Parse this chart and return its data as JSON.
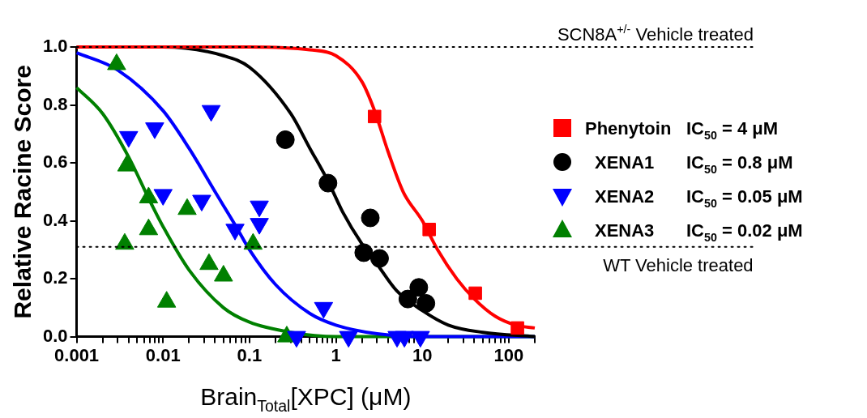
{
  "chart_data": {
    "type": "scatter",
    "xlabel": "Brain$_{Total}$[XPC] (μM)",
    "ylabel": "Relative Racine Score",
    "log": "x",
    "legend": "right",
    "grid": false,
    "xlim": [
      0.001,
      200
    ],
    "xticks": [
      {
        "value": 0.001,
        "label": "0.001"
      },
      {
        "value": 0.002,
        "label": null
      },
      {
        "value": 0.003,
        "label": null
      },
      {
        "value": 0.004,
        "label": null
      },
      {
        "value": 0.005,
        "label": null
      },
      {
        "value": 0.006,
        "label": null
      },
      {
        "value": 0.007,
        "label": null
      },
      {
        "value": 0.008,
        "label": null
      },
      {
        "value": 0.009,
        "label": null
      },
      {
        "value": 0.01,
        "label": "0.01"
      },
      {
        "value": 0.02,
        "label": null
      },
      {
        "value": 0.03,
        "label": null
      },
      {
        "value": 0.04,
        "label": null
      },
      {
        "value": 0.05,
        "label": null
      },
      {
        "value": 0.06,
        "label": null
      },
      {
        "value": 0.07,
        "label": null
      },
      {
        "value": 0.08,
        "label": null
      },
      {
        "value": 0.09,
        "label": null
      },
      {
        "value": 0.1,
        "label": "0.1"
      },
      {
        "value": 0.2,
        "label": null
      },
      {
        "value": 0.3,
        "label": null
      },
      {
        "value": 0.4,
        "label": null
      },
      {
        "value": 0.5,
        "label": null
      },
      {
        "value": 0.6,
        "label": null
      },
      {
        "value": 0.7,
        "label": null
      },
      {
        "value": 0.8,
        "label": null
      },
      {
        "value": 0.9,
        "label": null
      },
      1,
      {
        "value": 2,
        "label": null
      },
      {
        "value": 3,
        "label": null
      },
      {
        "value": 4,
        "label": null
      },
      {
        "value": 5,
        "label": null
      },
      {
        "value": 6,
        "label": null
      },
      {
        "value": 7,
        "label": null
      },
      {
        "value": 8,
        "label": null
      },
      {
        "value": 9,
        "label": null
      },
      10,
      {
        "value": 20,
        "label": null
      },
      {
        "value": 30,
        "label": null
      },
      {
        "value": 40,
        "label": null
      },
      {
        "value": 50,
        "label": null
      },
      {
        "value": 60,
        "label": null
      },
      {
        "value": 70,
        "label": null
      },
      {
        "value": 80,
        "label": null
      },
      {
        "value": 90,
        "label": null
      },
      100,
      {
        "value": 200,
        "label": null
      }
    ],
    "ylim": [
      0,
      1
    ],
    "yticks": [
      {
        "value": 0,
        "label": "0.0"
      },
      {
        "value": 0.2,
        "label": "0.2"
      },
      {
        "value": 0.4,
        "label": "0.4"
      },
      {
        "value": 0.6,
        "label": "0.6"
      },
      {
        "value": 0.8,
        "label": "0.8"
      },
      {
        "value": 1,
        "label": "1.0"
      }
    ],
    "ref_lines": [
      {
        "axis": "y",
        "value": 1,
        "label": "SCN8A$^{+/-}$ Vehicle treated",
        "line_style": "dotted",
        "color": "#000000"
      },
      {
        "axis": "y",
        "value": 0.31,
        "label": "WT Vehicle treated",
        "line_style": "dotted",
        "color": "#000000"
      }
    ],
    "annotations": [
      "IC$_{50}$ = 4 μM",
      "IC$_{50}$ = 0.8 μM",
      "IC$_{50}$ = 0.05 μM",
      "IC$_{50}$ = 0.02 μM"
    ],
    "series": [
      {
        "name": "Phenytoin",
        "marker": "square",
        "color": "#ff0000",
        "x": [
          2.8,
          12,
          41,
          126
        ],
        "values": [
          0.76,
          0.37,
          0.15,
          0.03
        ]
      },
      {
        "name": "XENA1",
        "marker": "circle",
        "color": "#000000",
        "x": [
          0.26,
          0.81,
          2.5,
          2.1,
          3.2,
          6.8,
          9.1,
          11
        ],
        "values": [
          0.68,
          0.53,
          0.41,
          0.29,
          0.27,
          0.13,
          0.17,
          0.115
        ]
      },
      {
        "name": "XENA2",
        "marker": "triangle-down",
        "color": "#0000ff",
        "x": [
          0.036,
          0.004,
          0.008,
          0.01,
          0.028,
          0.068,
          0.13,
          0.13,
          0.72,
          0.35,
          1.4,
          5.1,
          6.2,
          9.5
        ],
        "values": [
          0.78,
          0.69,
          0.72,
          0.49,
          0.47,
          0.37,
          0.45,
          0.39,
          0.1,
          0,
          0,
          0,
          0,
          0
        ]
      },
      {
        "name": "XENA3",
        "marker": "triangle",
        "color": "#008000",
        "x": [
          0.0029,
          0.0038,
          0.0068,
          0.0068,
          0.0036,
          0.019,
          0.011,
          0.034,
          0.05,
          0.11,
          0.27
        ],
        "values": [
          0.94,
          0.59,
          0.48,
          0.37,
          0.32,
          0.44,
          0.12,
          0.25,
          0.21,
          0.32,
          0
        ]
      },
      {
        "type": "line",
        "marker": "none",
        "line_style": "solid",
        "color": "#ff0000",
        "x": [
          0.001,
          0.1,
          0.5,
          1,
          2,
          2.8,
          4,
          6,
          10,
          15,
          25,
          40,
          70,
          120,
          200
        ],
        "values": [
          1,
          1,
          0.99,
          0.97,
          0.88,
          0.78,
          0.64,
          0.5,
          0.4,
          0.3,
          0.2,
          0.13,
          0.07,
          0.04,
          0.03
        ]
      },
      {
        "type": "line",
        "marker": "none",
        "line_style": "solid",
        "color": "#000000",
        "x": [
          0.001,
          0.01,
          0.05,
          0.1,
          0.3,
          0.5,
          0.8,
          1.2,
          2,
          3,
          5,
          10,
          20,
          50,
          200
        ],
        "values": [
          1,
          1,
          0.97,
          0.93,
          0.77,
          0.65,
          0.54,
          0.43,
          0.32,
          0.25,
          0.16,
          0.09,
          0.04,
          0.015,
          0
        ]
      },
      {
        "type": "line",
        "marker": "none",
        "line_style": "solid",
        "color": "#0000ff",
        "x": [
          0.001,
          0.003,
          0.01,
          0.02,
          0.04,
          0.07,
          0.1,
          0.2,
          0.5,
          1,
          3,
          10,
          200
        ],
        "values": [
          0.98,
          0.92,
          0.78,
          0.65,
          0.5,
          0.38,
          0.3,
          0.18,
          0.08,
          0.04,
          0.01,
          0,
          0
        ]
      },
      {
        "type": "line",
        "marker": "none",
        "line_style": "solid",
        "color": "#008000",
        "x": [
          0.001,
          0.002,
          0.004,
          0.007,
          0.01,
          0.02,
          0.05,
          0.1,
          0.3,
          1,
          200
        ],
        "values": [
          0.86,
          0.77,
          0.62,
          0.47,
          0.38,
          0.23,
          0.1,
          0.05,
          0.015,
          0,
          0
        ]
      }
    ]
  }
}
